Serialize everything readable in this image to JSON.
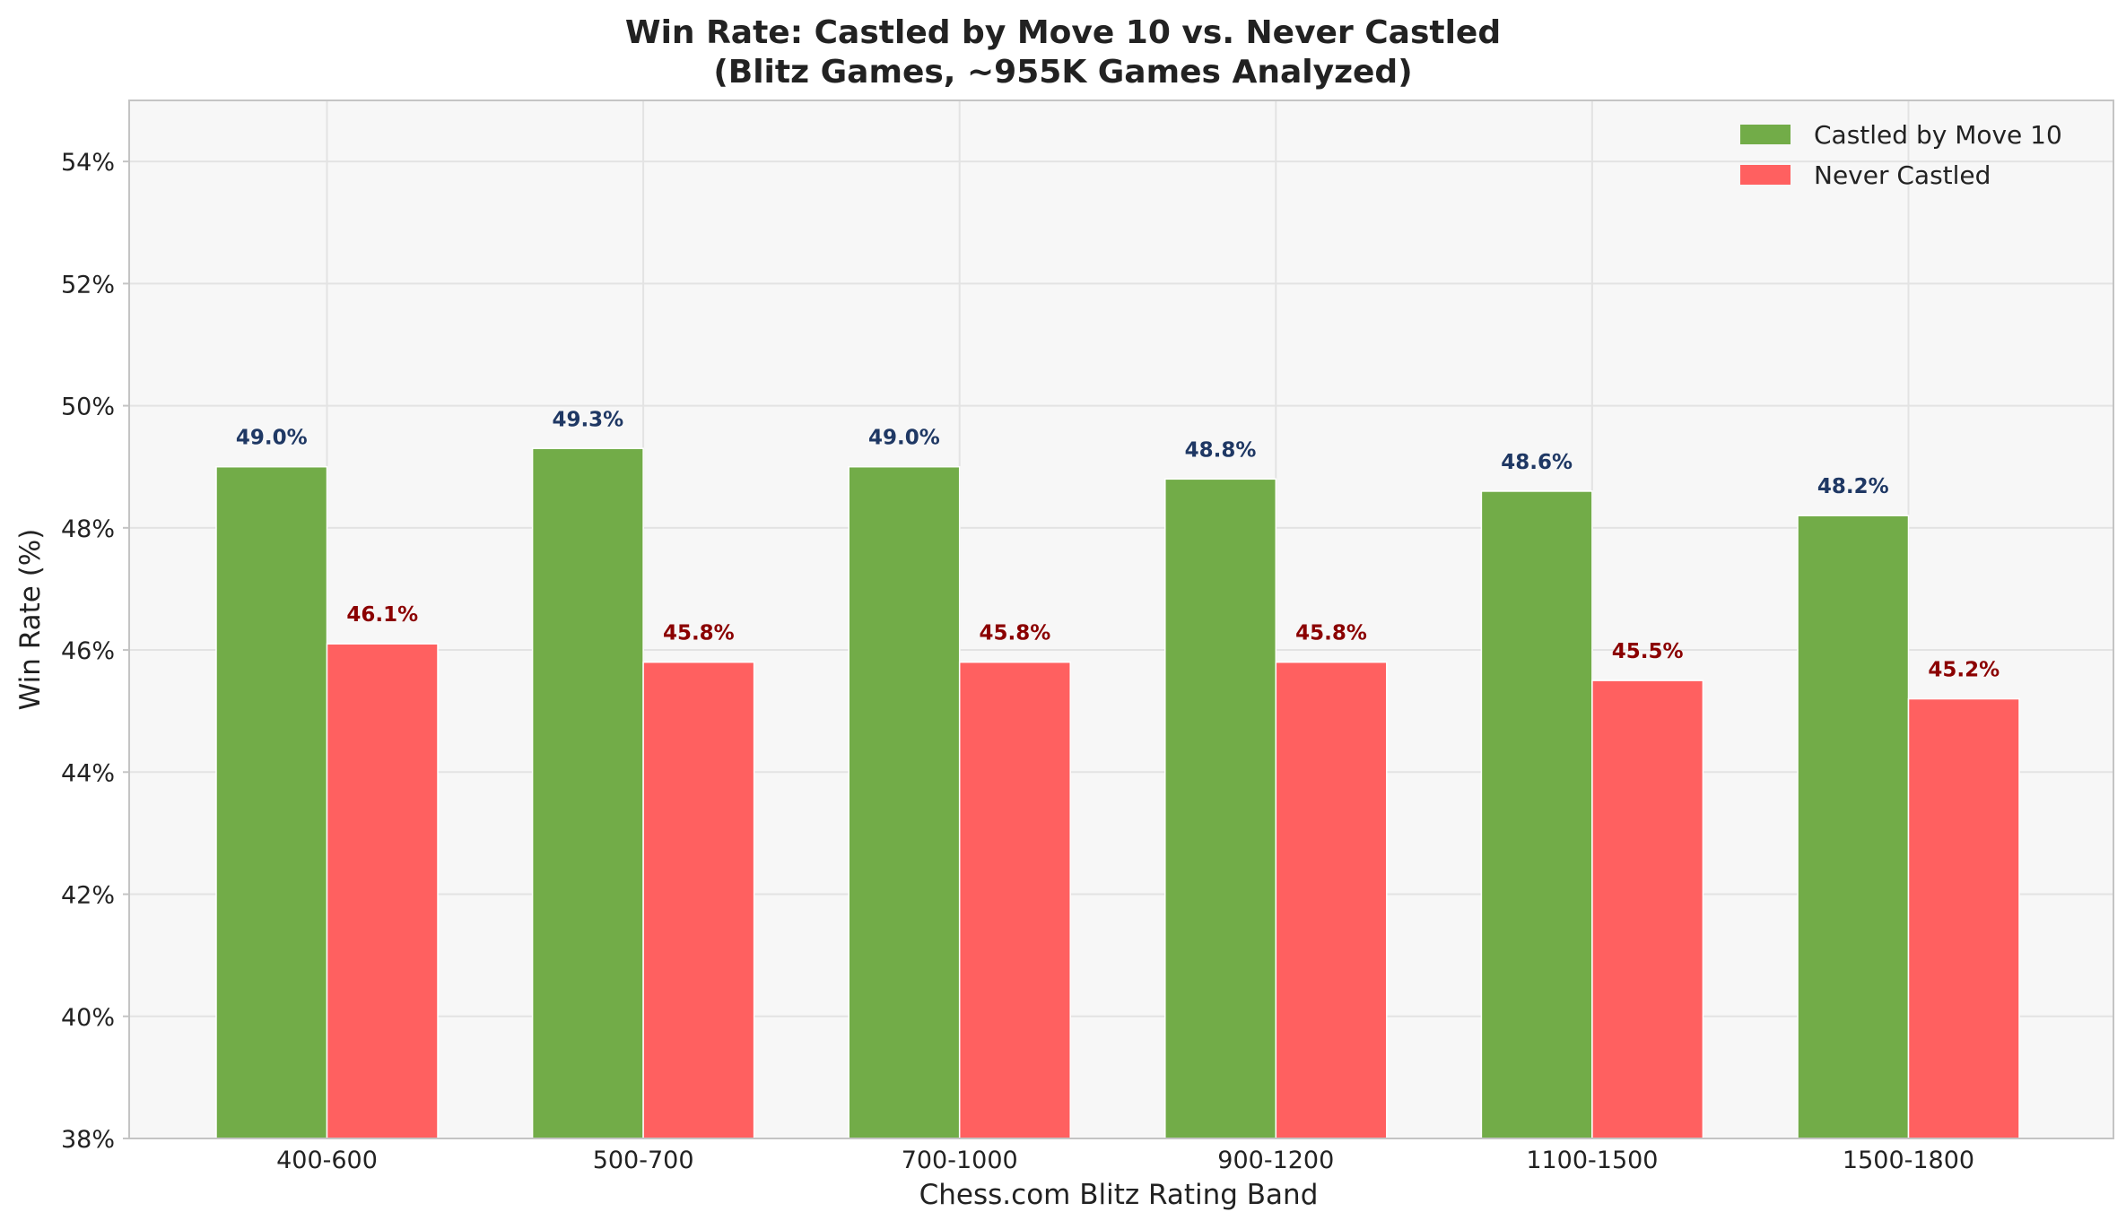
{
  "chart_data": {
    "type": "bar",
    "title": "Win Rate: Castled by Move 10 vs. Never Castled",
    "subtitle": "(Blitz Games, ~955K Games Analyzed)",
    "xlabel": "Chess.com Blitz Rating Band",
    "ylabel": "Win Rate (%)",
    "ylim": [
      38,
      55
    ],
    "yticks": [
      38,
      40,
      42,
      44,
      46,
      48,
      50,
      52,
      54
    ],
    "ytick_labels": [
      "38%",
      "40%",
      "42%",
      "44%",
      "46%",
      "48%",
      "50%",
      "52%",
      "54%"
    ],
    "grid": true,
    "legend_position": "top-right",
    "categories": [
      "400-600",
      "500-700",
      "700-1000",
      "900-1200",
      "1100-1500",
      "1500-1800"
    ],
    "series": [
      {
        "name": "Castled by Move 10",
        "color": "#72ac48",
        "label_color": "#1f3864",
        "values": [
          49.0,
          49.3,
          49.0,
          48.8,
          48.6,
          48.2
        ],
        "data_labels": [
          "49.0%",
          "49.3%",
          "49.0%",
          "48.8%",
          "48.6%",
          "48.2%"
        ]
      },
      {
        "name": "Never Castled",
        "color": "#ff6060",
        "label_color": "#8b0000",
        "values": [
          46.1,
          45.8,
          45.8,
          45.8,
          45.5,
          45.2
        ],
        "data_labels": [
          "46.1%",
          "45.8%",
          "45.8%",
          "45.8%",
          "45.5%",
          "45.2%"
        ]
      }
    ]
  }
}
